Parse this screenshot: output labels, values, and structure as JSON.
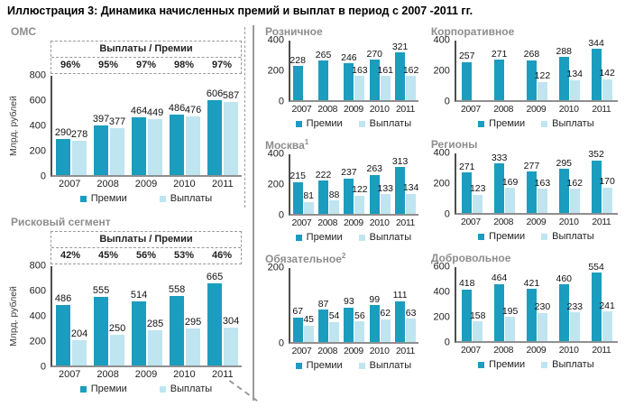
{
  "page_title": "Иллюстрация 3: Динамика начисленных премий и выплат в период с 2007 -2011 гг.",
  "ratio_box_title": "Выплаты / Премии",
  "legend": {
    "premium": "Премии",
    "payout": "Выплаты"
  },
  "colors": {
    "premium": "#1a9dbe",
    "payout": "#bfe5f0"
  },
  "chart_data": [
    {
      "id": "oms",
      "type": "bar",
      "title": "ОМС",
      "ylabel": "Млрд. рублей",
      "categories": [
        "2007",
        "2008",
        "2009",
        "2010",
        "2011"
      ],
      "series": [
        {
          "name": "Премии",
          "values": [
            290,
            397,
            464,
            486,
            606
          ]
        },
        {
          "name": "Выплаты",
          "values": [
            278,
            377,
            449,
            476,
            587
          ]
        }
      ],
      "ratios": [
        "96%",
        "95%",
        "97%",
        "98%",
        "97%"
      ],
      "ylim": [
        0,
        800
      ],
      "yticks": [
        800,
        600,
        400,
        200,
        0
      ],
      "grid": false,
      "legend_position": "bottom"
    },
    {
      "id": "risk-segment",
      "type": "bar",
      "title": "Рисковый сегмент",
      "ylabel": "Млрд. рублей",
      "categories": [
        "2007",
        "2008",
        "2009",
        "2010",
        "2011"
      ],
      "series": [
        {
          "name": "Премии",
          "values": [
            486,
            555,
            514,
            558,
            665
          ]
        },
        {
          "name": "Выплаты",
          "values": [
            204,
            250,
            285,
            295,
            304
          ]
        }
      ],
      "ratios": [
        "42%",
        "45%",
        "56%",
        "53%",
        "46%"
      ],
      "ylim": [
        0,
        800
      ],
      "yticks": [
        800,
        600,
        400,
        200,
        0
      ],
      "grid": false,
      "legend_position": "bottom"
    },
    {
      "id": "retail",
      "type": "bar",
      "title": "Розничное",
      "categories": [
        "2007",
        "2008",
        "2009",
        "2010",
        "2011"
      ],
      "series": [
        {
          "name": "Премии",
          "values": [
            228,
            265,
            246,
            270,
            321
          ]
        },
        {
          "name": "Выплаты",
          "values": [
            null,
            null,
            163,
            161,
            162
          ]
        }
      ],
      "ylim": [
        0,
        400
      ],
      "yticks": [
        400,
        200,
        0
      ],
      "grid": false,
      "legend_position": "bottom"
    },
    {
      "id": "corporate",
      "type": "bar",
      "title": "Корпоративное",
      "categories": [
        "2007",
        "2008",
        "2009",
        "2010",
        "2011"
      ],
      "series": [
        {
          "name": "Премии",
          "values": [
            257,
            271,
            268,
            288,
            344
          ]
        },
        {
          "name": "Выплаты",
          "values": [
            null,
            null,
            122,
            134,
            142
          ]
        }
      ],
      "ylim": [
        0,
        400
      ],
      "yticks": [
        400,
        200,
        0
      ],
      "grid": false,
      "legend_position": "bottom"
    },
    {
      "id": "moscow",
      "type": "bar",
      "title": "Москва",
      "title_sup": "1",
      "categories": [
        "2007",
        "2008",
        "2009",
        "2010",
        "2011"
      ],
      "series": [
        {
          "name": "Премии",
          "values": [
            215,
            222,
            237,
            263,
            313
          ]
        },
        {
          "name": "Выплаты",
          "values": [
            81,
            88,
            122,
            133,
            134
          ]
        }
      ],
      "ylim": [
        0,
        400
      ],
      "yticks": [
        400,
        200,
        0
      ],
      "grid": false,
      "legend_position": "bottom"
    },
    {
      "id": "regions",
      "type": "bar",
      "title": "Регионы",
      "categories": [
        "2007",
        "2008",
        "2009",
        "2010",
        "2011"
      ],
      "series": [
        {
          "name": "Премии",
          "values": [
            271,
            333,
            277,
            295,
            352
          ]
        },
        {
          "name": "Выплаты",
          "values": [
            123,
            169,
            163,
            162,
            170
          ]
        }
      ],
      "ylim": [
        0,
        400
      ],
      "yticks": [
        400,
        200,
        0
      ],
      "grid": false,
      "legend_position": "bottom"
    },
    {
      "id": "mandatory",
      "type": "bar",
      "title": "Обязательное",
      "title_sup": "2",
      "categories": [
        "2007",
        "2008",
        "2009",
        "2010",
        "2011"
      ],
      "series": [
        {
          "name": "Премии",
          "values": [
            67,
            87,
            93,
            99,
            111
          ]
        },
        {
          "name": "Выплаты",
          "values": [
            45,
            54,
            56,
            62,
            63
          ]
        }
      ],
      "ylim": [
        0,
        200
      ],
      "yticks": [
        200,
        0
      ],
      "grid": false,
      "legend_position": "bottom"
    },
    {
      "id": "voluntary",
      "type": "bar",
      "title": "Добровольное",
      "categories": [
        "2007",
        "2008",
        "2009",
        "2010",
        "2011"
      ],
      "series": [
        {
          "name": "Премии",
          "values": [
            418,
            464,
            421,
            460,
            554
          ]
        },
        {
          "name": "Выплаты",
          "values": [
            158,
            195,
            230,
            233,
            241
          ]
        }
      ],
      "ylim": [
        0,
        600
      ],
      "yticks": [
        600,
        400,
        200,
        0
      ],
      "grid": false,
      "legend_position": "bottom"
    }
  ]
}
